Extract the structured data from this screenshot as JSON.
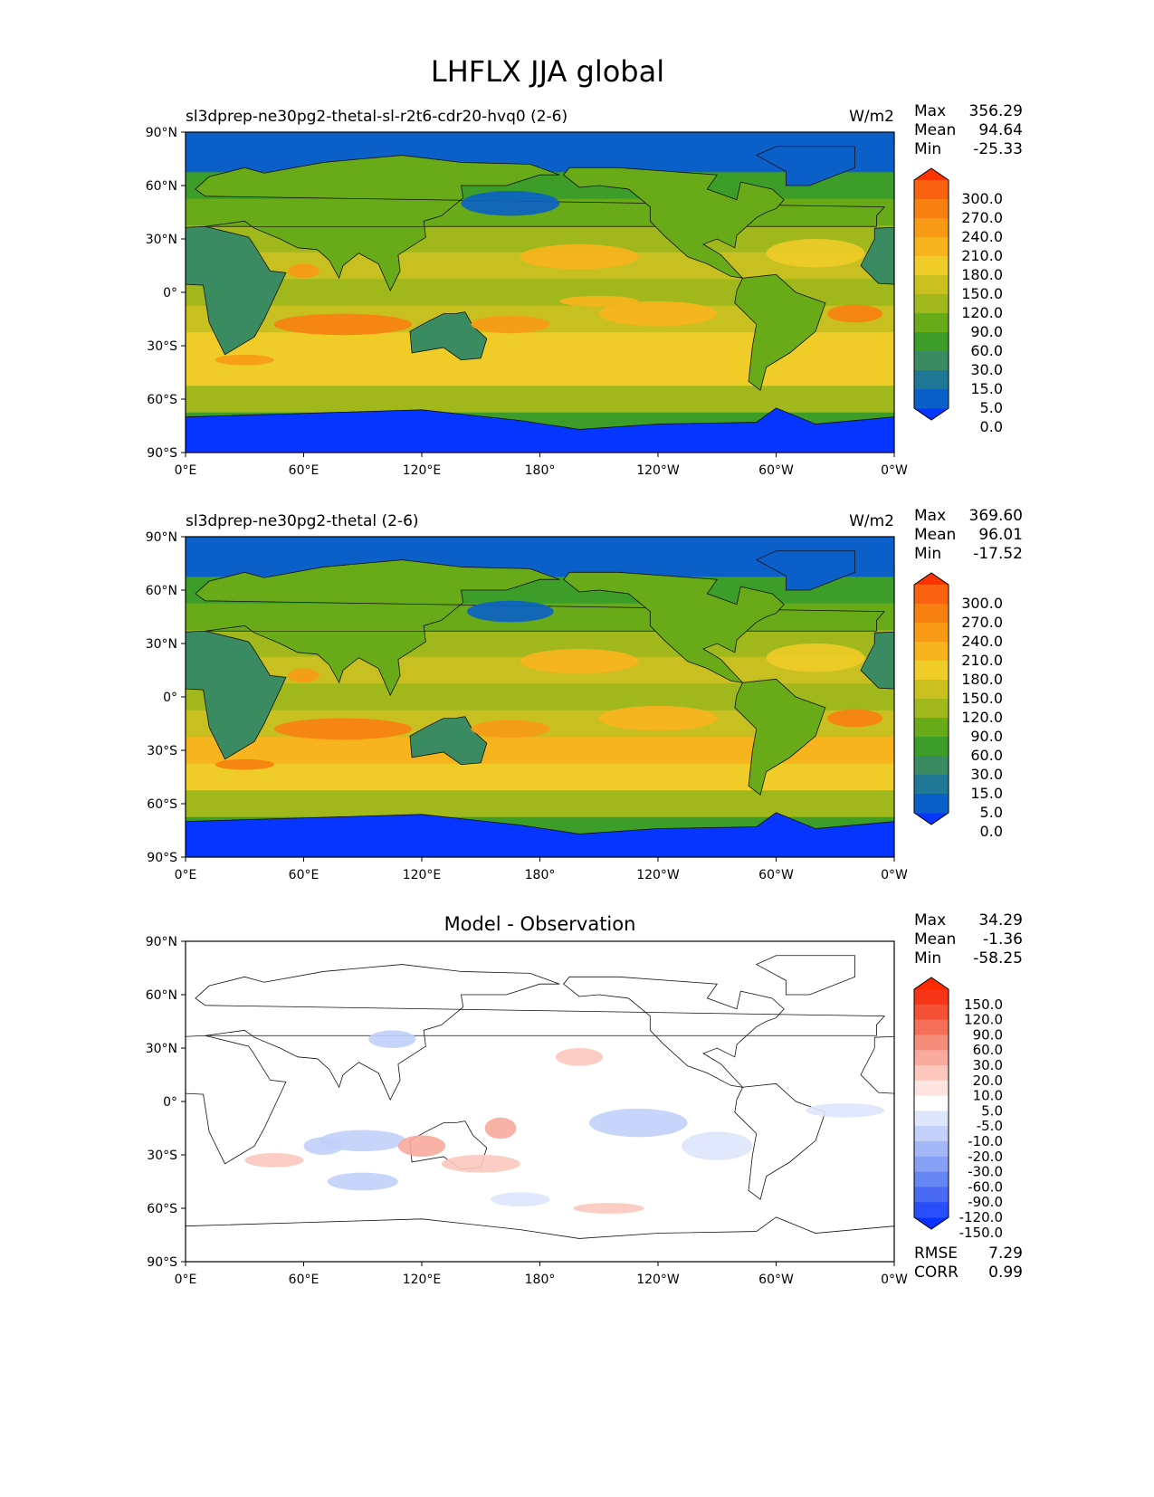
{
  "chart_data": {
    "type": "heatmap",
    "title": "LHFLX JJA global",
    "x_ticks": [
      "0°E",
      "60°E",
      "120°E",
      "180°",
      "120°W",
      "60°W",
      "0°W"
    ],
    "y_ticks": [
      "90°N",
      "60°N",
      "30°N",
      "0°",
      "30°S",
      "60°S",
      "90°S"
    ],
    "xlim": [
      0,
      360
    ],
    "ylim": [
      -90,
      90
    ],
    "panels": [
      {
        "title_left": "sl3dprep-ne30pg2-thetal-sl-r2t6-cdr20-hvq0 (2-6)",
        "title_center": "",
        "units": "W/m2",
        "stats": [
          {
            "label": "Max",
            "value": "356.29"
          },
          {
            "label": "Mean",
            "value": "94.64"
          },
          {
            "label": "Min",
            "value": "-25.33"
          }
        ],
        "colorbar": "field",
        "zonal_profile": [
          0,
          3,
          40,
          70,
          90,
          130,
          110,
          120,
          170,
          170,
          90,
          30,
          0
        ],
        "features": [
          [
            165,
            50,
            25,
            7,
            0
          ],
          [
            200,
            20,
            30,
            7,
            200
          ],
          [
            -40,
            22,
            25,
            8,
            170
          ],
          [
            80,
            -18,
            35,
            6,
            240
          ],
          [
            -120,
            -12,
            30,
            7,
            190
          ],
          [
            -20,
            -12,
            14,
            5,
            260
          ],
          [
            165,
            -18,
            20,
            5,
            220
          ],
          [
            60,
            12,
            8,
            4,
            220
          ],
          [
            -150,
            -5,
            20,
            3,
            200
          ],
          [
            30,
            -38,
            15,
            3,
            230
          ]
        ]
      },
      {
        "title_left": "sl3dprep-ne30pg2-thetal (2-6)",
        "title_center": "",
        "units": "W/m2",
        "stats": [
          {
            "label": "Max",
            "value": "369.60"
          },
          {
            "label": "Mean",
            "value": "96.01"
          },
          {
            "label": "Min",
            "value": "-17.52"
          }
        ],
        "colorbar": "field",
        "zonal_profile": [
          0,
          3,
          40,
          70,
          90,
          130,
          110,
          125,
          180,
          170,
          90,
          30,
          0
        ],
        "features": [
          [
            165,
            48,
            22,
            6,
            0
          ],
          [
            200,
            20,
            30,
            7,
            180
          ],
          [
            -40,
            22,
            25,
            8,
            170
          ],
          [
            80,
            -18,
            35,
            6,
            250
          ],
          [
            -120,
            -12,
            30,
            7,
            200
          ],
          [
            -20,
            -12,
            14,
            5,
            260
          ],
          [
            165,
            -18,
            20,
            5,
            230
          ],
          [
            60,
            12,
            8,
            4,
            220
          ],
          [
            30,
            -38,
            15,
            3,
            240
          ]
        ]
      },
      {
        "title_left": "",
        "title_center": "Model - Observation",
        "units": "",
        "stats": [
          {
            "label": "Max",
            "value": "34.29"
          },
          {
            "label": "Mean",
            "value": "-1.36"
          },
          {
            "label": "Min",
            "value": "-58.25"
          }
        ],
        "colorbar": "diff",
        "metrics": [
          {
            "label": "RMSE",
            "value": "7.29"
          },
          {
            "label": "CORR",
            "value": "0.99"
          }
        ],
        "zonal_profile": [
          0,
          0,
          0,
          0,
          0,
          0,
          0,
          0,
          0,
          0,
          0,
          0,
          0
        ],
        "features": [
          [
            90,
            -22,
            22,
            6,
            -15
          ],
          [
            120,
            -25,
            12,
            6,
            25
          ],
          [
            70,
            -25,
            10,
            5,
            -20
          ],
          [
            200,
            25,
            12,
            5,
            15
          ],
          [
            230,
            -12,
            25,
            8,
            -15
          ],
          [
            150,
            -35,
            20,
            5,
            12
          ],
          [
            45,
            -33,
            15,
            4,
            12
          ],
          [
            90,
            -45,
            18,
            5,
            -12
          ],
          [
            215,
            -60,
            18,
            3,
            15
          ],
          [
            -90,
            -25,
            18,
            8,
            -10
          ],
          [
            105,
            35,
            12,
            5,
            -12
          ],
          [
            160,
            -15,
            8,
            6,
            20
          ],
          [
            -25,
            -5,
            20,
            4,
            -10
          ],
          [
            170,
            -55,
            15,
            4,
            -10
          ]
        ]
      }
    ],
    "colorbars": {
      "field": {
        "labels": [
          "300.0",
          "270.0",
          "240.0",
          "210.0",
          "180.0",
          "150.0",
          "120.0",
          "90.0",
          "60.0",
          "30.0",
          "15.0",
          "5.0",
          "0.0"
        ],
        "levels": [
          0,
          5,
          15,
          30,
          60,
          90,
          120,
          150,
          180,
          210,
          240,
          270,
          300
        ],
        "colors": [
          "#0535ff",
          "#0a60c8",
          "#1e7896",
          "#3a8a62",
          "#3c9e28",
          "#68aa18",
          "#a0b81c",
          "#c8c020",
          "#f0cc28",
          "#f8b41e",
          "#f89a16",
          "#f88010",
          "#f86210",
          "#ff3300"
        ]
      },
      "diff": {
        "labels": [
          "150.0",
          "120.0",
          "90.0",
          "60.0",
          "30.0",
          "20.0",
          "10.0",
          "5.0",
          "-5.0",
          "-10.0",
          "-20.0",
          "-30.0",
          "-60.0",
          "-90.0",
          "-120.0",
          "-150.0"
        ],
        "levels": [
          -150,
          -120,
          -90,
          -60,
          -30,
          -20,
          -10,
          -5,
          5,
          10,
          20,
          30,
          60,
          90,
          120,
          150
        ],
        "colors": [
          "#0a32ff",
          "#2a4ef8",
          "#4a6af4",
          "#6686f4",
          "#86a0f6",
          "#a4b8f8",
          "#c2d0fa",
          "#dee6fc",
          "#ffffff",
          "#fde4e0",
          "#fcc8be",
          "#f8aa9c",
          "#f68c7a",
          "#f46e58",
          "#f45036",
          "#f63418",
          "#ff2a00"
        ]
      }
    }
  }
}
